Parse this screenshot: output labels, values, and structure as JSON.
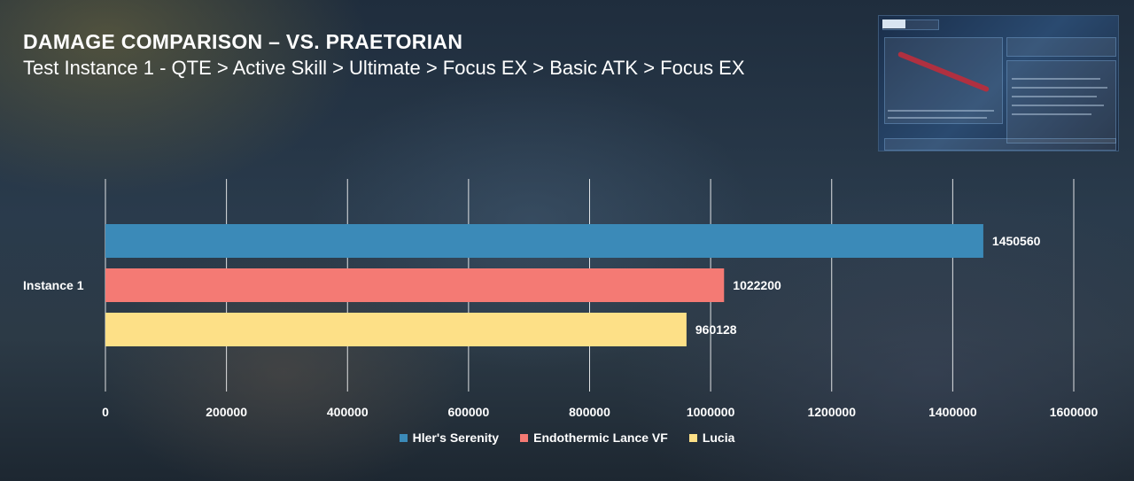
{
  "chart_data": {
    "type": "bar",
    "orientation": "horizontal",
    "title": "DAMAGE COMPARISON – VS. PRAETORIAN",
    "subtitle": "Test Instance 1 - QTE > Active Skill > Ultimate > Focus EX > Basic ATK > Focus EX",
    "categories": [
      "Instance 1"
    ],
    "series": [
      {
        "name": "Hler's Serenity",
        "values": [
          1450560
        ],
        "color": "#3b8ab8"
      },
      {
        "name": "Endothermic Lance VF",
        "values": [
          1022200
        ],
        "color": "#f47a74"
      },
      {
        "name": "Lucia",
        "values": [
          960128
        ],
        "color": "#fde087"
      }
    ],
    "xlim": [
      0,
      1600000
    ],
    "xticks": [
      "0",
      "200000",
      "400000",
      "600000",
      "800000",
      "1000000",
      "1200000",
      "1400000",
      "1600000"
    ],
    "grid": true,
    "legend_position": "bottom"
  }
}
